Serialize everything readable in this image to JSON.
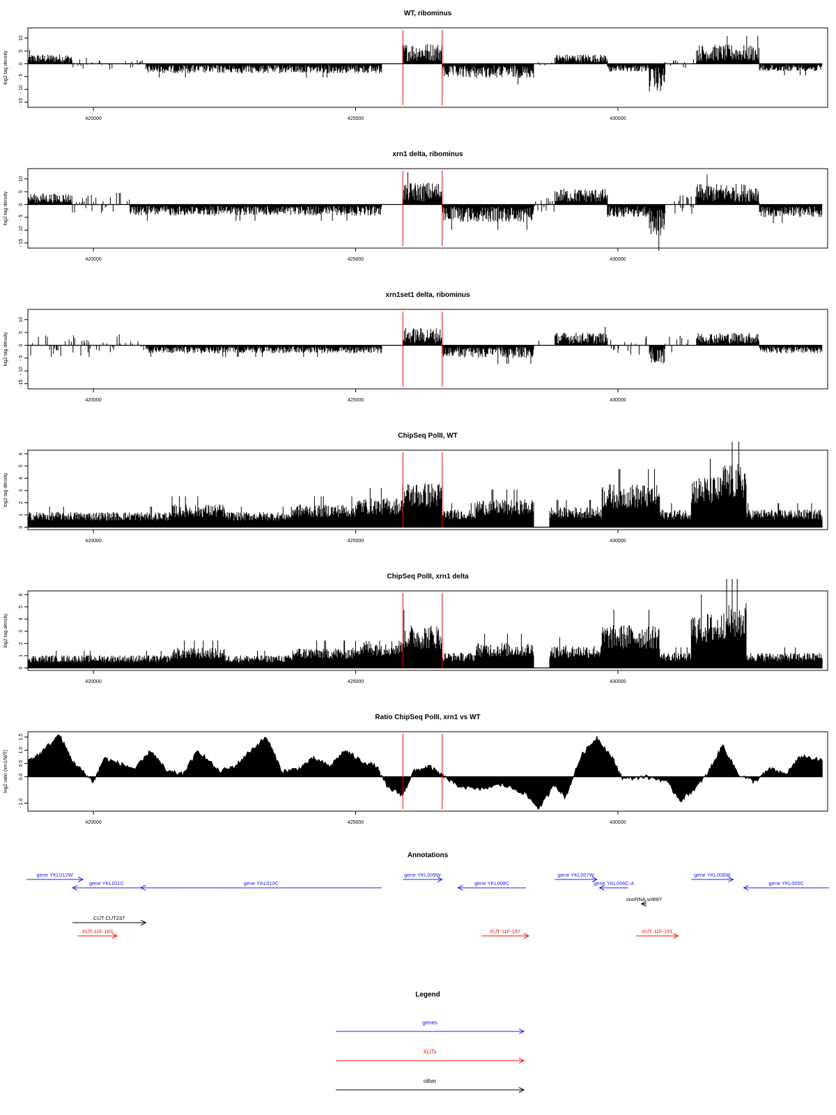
{
  "colors": {
    "gene": "#2020ee",
    "xut": "#ee1111",
    "other": "#000000",
    "marker": "#ff0000",
    "trace": "#000000"
  },
  "chart_data": [
    {
      "type": "area",
      "title": "WT, ribominus",
      "ylabel": "log2 tag density",
      "ylim": [
        -17,
        14
      ],
      "yticks": [
        10,
        5,
        0,
        -5,
        -10,
        -15
      ],
      "ytick_labels": [
        "10",
        "5",
        "0",
        "- 5",
        "- 10",
        "- 15"
      ],
      "xlim": [
        418750,
        434000
      ],
      "xticks": [
        420000,
        425000,
        430000
      ],
      "xtick_labels": [
        "420000",
        "425000",
        "430000"
      ],
      "markers": [
        425900,
        426650
      ],
      "segments": [
        {
          "x": [
            418750,
            419600
          ],
          "level": 3,
          "sign": 1
        },
        {
          "x": [
            419600,
            420400
          ],
          "level": 1.2,
          "sign": 0
        },
        {
          "x": [
            420400,
            421000
          ],
          "level": 0.8,
          "sign": 0
        },
        {
          "x": [
            421000,
            425500
          ],
          "level": -3,
          "sign": -1
        },
        {
          "x": [
            425900,
            426650
          ],
          "level": 6.5,
          "sign": 1
        },
        {
          "x": [
            426650,
            428400
          ],
          "level": -4.5,
          "sign": -1
        },
        {
          "x": [
            428400,
            428800
          ],
          "level": 0.5,
          "sign": 0
        },
        {
          "x": [
            428800,
            429800
          ],
          "level": 3,
          "sign": 1
        },
        {
          "x": [
            429800,
            430600
          ],
          "level": -2.5,
          "sign": -1
        },
        {
          "x": [
            430600,
            430900
          ],
          "level": -9,
          "sign": -1
        },
        {
          "x": [
            430900,
            431500
          ],
          "level": -1,
          "sign": 0
        },
        {
          "x": [
            431500,
            432700
          ],
          "level": 6,
          "sign": 1
        },
        {
          "x": [
            432700,
            433900
          ],
          "level": -2.5,
          "sign": -1
        }
      ]
    },
    {
      "type": "area",
      "title": "xrn1 delta, ribominus",
      "ylabel": "log2 tag density",
      "ylim": [
        -17,
        14
      ],
      "yticks": [
        10,
        5,
        0,
        -5,
        -10,
        -15
      ],
      "ytick_labels": [
        "10",
        "5",
        "0",
        "- 5",
        "- 10",
        "- 15"
      ],
      "xlim": [
        418750,
        434000
      ],
      "xticks": [
        420000,
        425000,
        430000
      ],
      "xtick_labels": [
        "420000",
        "425000",
        "430000"
      ],
      "markers": [
        425900,
        426650
      ],
      "segments": [
        {
          "x": [
            418750,
            419600
          ],
          "level": 3.5,
          "sign": 1
        },
        {
          "x": [
            419600,
            420700
          ],
          "level": 2.5,
          "sign": 0
        },
        {
          "x": [
            420700,
            425500
          ],
          "level": -3.5,
          "sign": -1
        },
        {
          "x": [
            425900,
            426650
          ],
          "level": 7,
          "sign": 1
        },
        {
          "x": [
            426650,
            428400
          ],
          "level": -5.5,
          "sign": -1
        },
        {
          "x": [
            428400,
            428800
          ],
          "level": 1.5,
          "sign": 0
        },
        {
          "x": [
            428800,
            429800
          ],
          "level": 5,
          "sign": 1
        },
        {
          "x": [
            429800,
            430600
          ],
          "level": -4,
          "sign": -1
        },
        {
          "x": [
            430600,
            430900
          ],
          "level": -10,
          "sign": -1
        },
        {
          "x": [
            430900,
            431500
          ],
          "level": 2,
          "sign": 0
        },
        {
          "x": [
            431500,
            432700
          ],
          "level": 6.5,
          "sign": 1
        },
        {
          "x": [
            432700,
            433900
          ],
          "level": -4,
          "sign": -1
        }
      ]
    },
    {
      "type": "area",
      "title": "xrn1set1 delta, ribominus",
      "ylabel": "log2 tag density",
      "ylim": [
        -17,
        14
      ],
      "yticks": [
        10,
        5,
        0,
        -5,
        -10,
        -15
      ],
      "ytick_labels": [
        "10",
        "5",
        "0",
        "- 5",
        "- 10",
        "- 15"
      ],
      "xlim": [
        418750,
        434000
      ],
      "xticks": [
        420000,
        425000,
        430000
      ],
      "xtick_labels": [
        "420000",
        "425000",
        "430000"
      ],
      "markers": [
        425900,
        426650
      ],
      "segments": [
        {
          "x": [
            418750,
            420500
          ],
          "level": 2.5,
          "sign": 0
        },
        {
          "x": [
            420500,
            421000
          ],
          "level": 1,
          "sign": 0
        },
        {
          "x": [
            421000,
            425500
          ],
          "level": -2.5,
          "sign": -1
        },
        {
          "x": [
            425900,
            426650
          ],
          "level": 5.5,
          "sign": 1
        },
        {
          "x": [
            426650,
            428400
          ],
          "level": -4,
          "sign": -1
        },
        {
          "x": [
            428400,
            428800
          ],
          "level": 1,
          "sign": 0
        },
        {
          "x": [
            428800,
            429800
          ],
          "level": 4,
          "sign": 1
        },
        {
          "x": [
            429800,
            430600
          ],
          "level": 2,
          "sign": 0
        },
        {
          "x": [
            430600,
            430900
          ],
          "level": -6,
          "sign": -1
        },
        {
          "x": [
            430900,
            431500
          ],
          "level": 2,
          "sign": 0
        },
        {
          "x": [
            431500,
            432700
          ],
          "level": 4,
          "sign": 1
        },
        {
          "x": [
            432700,
            433900
          ],
          "level": -2.5,
          "sign": -1
        }
      ]
    },
    {
      "type": "area",
      "title": "ChipSeq PolII, WT",
      "ylabel": "log2 tag density",
      "ylim": [
        -0.2,
        6.3
      ],
      "yticks": [
        0,
        1,
        2,
        3,
        4,
        5,
        6
      ],
      "ytick_labels": [
        "0",
        "1",
        "2",
        "3",
        "4",
        "5",
        "6"
      ],
      "xlim": [
        418750,
        434000
      ],
      "xticks": [
        420000,
        425000,
        430000
      ],
      "xtick_labels": [
        "420000",
        "425000",
        "430000"
      ],
      "markers": [
        425900,
        426650
      ],
      "segments": [
        {
          "x": [
            418750,
            421500
          ],
          "level": 1.2,
          "sign": 1
        },
        {
          "x": [
            421500,
            422500
          ],
          "level": 1.8,
          "sign": 1
        },
        {
          "x": [
            422500,
            423800
          ],
          "level": 1.2,
          "sign": 1
        },
        {
          "x": [
            423800,
            425000
          ],
          "level": 1.8,
          "sign": 1
        },
        {
          "x": [
            425000,
            425900
          ],
          "level": 2.3,
          "sign": 1
        },
        {
          "x": [
            425900,
            426650
          ],
          "level": 3.5,
          "sign": 1
        },
        {
          "x": [
            426650,
            427300
          ],
          "level": 1.4,
          "sign": 1
        },
        {
          "x": [
            427300,
            428400
          ],
          "level": 2.2,
          "sign": 1
        },
        {
          "x": [
            428700,
            429700
          ],
          "level": 1.6,
          "sign": 1
        },
        {
          "x": [
            429700,
            430800
          ],
          "level": 3.4,
          "sign": 1
        },
        {
          "x": [
            430800,
            431400
          ],
          "level": 1.4,
          "sign": 1
        },
        {
          "x": [
            431400,
            432000
          ],
          "level": 4,
          "sign": 1
        },
        {
          "x": [
            432000,
            432450
          ],
          "level": 5,
          "sign": 1
        },
        {
          "x": [
            432450,
            433900
          ],
          "level": 1.4,
          "sign": 1
        }
      ]
    },
    {
      "type": "area",
      "title": "ChipSeq PolII, xrn1 delta",
      "ylabel": "log2 tag density",
      "ylim": [
        -0.2,
        6.3
      ],
      "yticks": [
        0,
        1,
        2,
        3,
        4,
        5,
        6
      ],
      "ytick_labels": [
        "0",
        "1",
        "2",
        "3",
        "4",
        "5",
        "6"
      ],
      "xlim": [
        418750,
        434000
      ],
      "xticks": [
        420000,
        425000,
        430000
      ],
      "xtick_labels": [
        "420000",
        "425000",
        "430000"
      ],
      "markers": [
        425900,
        426650
      ],
      "segments": [
        {
          "x": [
            418750,
            421500
          ],
          "level": 1,
          "sign": 1
        },
        {
          "x": [
            421500,
            422500
          ],
          "level": 1.6,
          "sign": 1
        },
        {
          "x": [
            422500,
            423800
          ],
          "level": 1,
          "sign": 1
        },
        {
          "x": [
            423800,
            425000
          ],
          "level": 1.6,
          "sign": 1
        },
        {
          "x": [
            425000,
            425900
          ],
          "level": 2.2,
          "sign": 1
        },
        {
          "x": [
            425900,
            426650
          ],
          "level": 3.4,
          "sign": 1
        },
        {
          "x": [
            426650,
            427300
          ],
          "level": 1.2,
          "sign": 1
        },
        {
          "x": [
            427300,
            428400
          ],
          "level": 2,
          "sign": 1
        },
        {
          "x": [
            428700,
            429700
          ],
          "level": 1.8,
          "sign": 1
        },
        {
          "x": [
            429700,
            430800
          ],
          "level": 3.4,
          "sign": 1
        },
        {
          "x": [
            430800,
            431400
          ],
          "level": 1.2,
          "sign": 1
        },
        {
          "x": [
            431400,
            432000
          ],
          "level": 4.3,
          "sign": 1
        },
        {
          "x": [
            432000,
            432450
          ],
          "level": 5.2,
          "sign": 1
        },
        {
          "x": [
            432450,
            433900
          ],
          "level": 1.2,
          "sign": 1
        }
      ]
    },
    {
      "type": "area",
      "title": "Ratio ChipSeq PolII, xrn1 vs WT",
      "ylabel": "log2 ratio (xrn1/WT)",
      "ylim": [
        -1.3,
        1.7
      ],
      "yticks": [
        -1,
        0,
        0.5,
        1,
        1.5
      ],
      "ytick_labels": [
        "- 1.0",
        "0.0",
        "0.5",
        "1.0",
        "1.5"
      ],
      "xlim": [
        418750,
        434000
      ],
      "xticks": [
        420000,
        425000,
        430000
      ],
      "xtick_labels": [
        "420000",
        "425000",
        "430000"
      ],
      "markers": [
        425900,
        426650
      ],
      "ratio_points": [
        [
          418750,
          0.6
        ],
        [
          419000,
          0.9
        ],
        [
          419350,
          1.6
        ],
        [
          419600,
          0.6
        ],
        [
          419800,
          0.2
        ],
        [
          420000,
          -0.2
        ],
        [
          420200,
          0.7
        ],
        [
          420500,
          0.5
        ],
        [
          420800,
          0.3
        ],
        [
          421100,
          1.0
        ],
        [
          421400,
          0.2
        ],
        [
          421700,
          0.1
        ],
        [
          422000,
          1.0
        ],
        [
          422400,
          0.2
        ],
        [
          422700,
          0.4
        ],
        [
          423000,
          1.0
        ],
        [
          423300,
          1.5
        ],
        [
          423600,
          0.2
        ],
        [
          423900,
          0.3
        ],
        [
          424200,
          0.7
        ],
        [
          424500,
          0.4
        ],
        [
          424800,
          1.0
        ],
        [
          425100,
          0.6
        ],
        [
          425400,
          0.4
        ],
        [
          425600,
          -0.4
        ],
        [
          425900,
          -0.7
        ],
        [
          426100,
          0.2
        ],
        [
          426400,
          0.4
        ],
        [
          426650,
          0.05
        ],
        [
          426900,
          -0.3
        ],
        [
          427300,
          -0.5
        ],
        [
          427800,
          -0.3
        ],
        [
          428200,
          -0.6
        ],
        [
          428500,
          -1.2
        ],
        [
          428800,
          -0.3
        ],
        [
          429000,
          -0.8
        ],
        [
          429300,
          0.8
        ],
        [
          429600,
          1.5
        ],
        [
          429900,
          0.7
        ],
        [
          430100,
          -0.1
        ],
        [
          430500,
          0.0
        ],
        [
          430900,
          -0.15
        ],
        [
          431200,
          -0.9
        ],
        [
          431500,
          -0.4
        ],
        [
          431700,
          0.1
        ],
        [
          432000,
          1.2
        ],
        [
          432300,
          0.1
        ],
        [
          432600,
          -0.2
        ],
        [
          432900,
          0.3
        ],
        [
          433200,
          0.1
        ],
        [
          433500,
          0.8
        ],
        [
          433900,
          0.6
        ]
      ]
    }
  ],
  "annotations": {
    "title": "Annotations",
    "xlim": [
      418750,
      434000
    ],
    "items": [
      {
        "label": "gene YKL012W",
        "type": "gene",
        "dir": "+",
        "start": 418200,
        "end": 419800,
        "row": 0
      },
      {
        "label": "gene YKL011C",
        "type": "gene",
        "dir": "-",
        "start": 419600,
        "end": 420900,
        "row": 1
      },
      {
        "label": "gene YKL010C",
        "type": "gene",
        "dir": "-",
        "start": 420900,
        "end": 425500,
        "row": 1
      },
      {
        "label": "gene YKL009W",
        "type": "gene",
        "dir": "+",
        "start": 425900,
        "end": 426650,
        "row": 0
      },
      {
        "label": "gene YKL008C",
        "type": "gene",
        "dir": "-",
        "start": 426950,
        "end": 428250,
        "row": 1
      },
      {
        "label": "gene YKL007W",
        "type": "gene",
        "dir": "+",
        "start": 428800,
        "end": 429600,
        "row": 0
      },
      {
        "label": "gene YKL006C-A",
        "type": "gene",
        "dir": "-",
        "start": 429650,
        "end": 430200,
        "row": 1
      },
      {
        "label": "snoRNA snR87",
        "type": "other",
        "dir": "-",
        "start": 430450,
        "end": 430550,
        "row": 2
      },
      {
        "label": "gene YKL006W",
        "type": "gene",
        "dir": "+",
        "start": 431400,
        "end": 432200,
        "row": 0
      },
      {
        "label": "gene YKL005C",
        "type": "gene",
        "dir": "-",
        "start": 432400,
        "end": 434450,
        "row": 1
      },
      {
        "label": "CUT CUT237",
        "type": "other",
        "dir": "+",
        "start": 419600,
        "end": 421000,
        "row": 3
      },
      {
        "label": "XUT 11F-183",
        "type": "xut",
        "dir": "+",
        "start": 419700,
        "end": 420450,
        "row": 4
      },
      {
        "label": "XUT 11F-187",
        "type": "xut",
        "dir": "+",
        "start": 427400,
        "end": 428300,
        "row": 4
      },
      {
        "label": "XUT 11F-191",
        "type": "xut",
        "dir": "+",
        "start": 430350,
        "end": 431150,
        "row": 4
      }
    ]
  },
  "legend": {
    "title": "Legend",
    "items": [
      {
        "label": "genes",
        "type": "gene"
      },
      {
        "label": "XUTs",
        "type": "xut"
      },
      {
        "label": "other",
        "type": "other"
      }
    ]
  }
}
